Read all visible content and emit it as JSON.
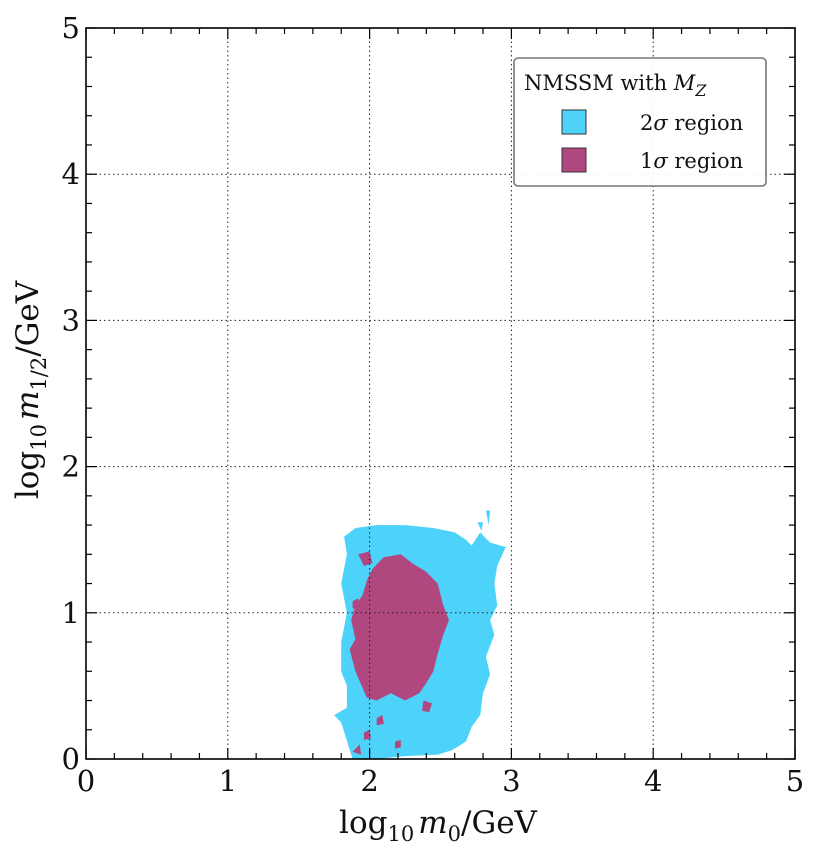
{
  "chart_data": {
    "type": "contour",
    "title": "",
    "xlabel": {
      "base": "log",
      "sub": "10",
      "var": "m",
      "var_sub": "0",
      "unit": "/GeV"
    },
    "ylabel": {
      "base": "log",
      "sub": "10",
      "var": "m",
      "var_sub": "1/2",
      "unit": "/GeV"
    },
    "xlim": [
      0,
      5
    ],
    "ylim": [
      0,
      5
    ],
    "xticks": [
      "0",
      "1",
      "2",
      "3",
      "4",
      "5"
    ],
    "yticks": [
      "0",
      "1",
      "2",
      "3",
      "4",
      "5"
    ],
    "grid": true,
    "legend": {
      "position": "top-right",
      "title_prefix": "NMSSM with ",
      "title_var": "M",
      "title_var_sub": "Z",
      "entries": [
        {
          "sigma": "2",
          "symbol": "σ",
          "text": " region",
          "color": "#4dd2fa"
        },
        {
          "sigma": "1",
          "symbol": "σ",
          "text": " region",
          "color": "#b0477f"
        }
      ]
    },
    "series": [
      {
        "name": "2σ region",
        "color": "#4dd2fa",
        "polygon": [
          [
            1.88,
            0.0
          ],
          [
            1.8,
            0.25
          ],
          [
            1.75,
            0.3
          ],
          [
            1.84,
            0.35
          ],
          [
            1.84,
            0.5
          ],
          [
            1.8,
            0.6
          ],
          [
            1.8,
            0.8
          ],
          [
            1.84,
            1.0
          ],
          [
            1.8,
            1.2
          ],
          [
            1.84,
            1.4
          ],
          [
            1.82,
            1.52
          ],
          [
            1.9,
            1.58
          ],
          [
            2.05,
            1.6
          ],
          [
            2.25,
            1.6
          ],
          [
            2.45,
            1.58
          ],
          [
            2.6,
            1.55
          ],
          [
            2.68,
            1.5
          ],
          [
            2.72,
            1.46
          ],
          [
            2.78,
            1.55
          ],
          [
            2.85,
            1.48
          ],
          [
            2.96,
            1.45
          ],
          [
            2.9,
            1.32
          ],
          [
            2.88,
            1.2
          ],
          [
            2.9,
            1.05
          ],
          [
            2.85,
            0.95
          ],
          [
            2.88,
            0.85
          ],
          [
            2.82,
            0.7
          ],
          [
            2.85,
            0.58
          ],
          [
            2.8,
            0.45
          ],
          [
            2.78,
            0.3
          ],
          [
            2.72,
            0.22
          ],
          [
            2.68,
            0.12
          ],
          [
            2.58,
            0.06
          ],
          [
            2.48,
            0.03
          ],
          [
            2.25,
            0.02
          ],
          [
            2.05,
            0.0
          ]
        ],
        "islands": [
          [
            [
              2.82,
              1.7
            ],
            [
              2.85,
              1.7
            ],
            [
              2.84,
              1.6
            ]
          ],
          [
            [
              2.76,
              1.62
            ],
            [
              2.8,
              1.62
            ],
            [
              2.79,
              1.56
            ]
          ]
        ]
      },
      {
        "name": "1σ region",
        "color": "#b0477f",
        "polygon": [
          [
            1.98,
            0.42
          ],
          [
            1.9,
            0.6
          ],
          [
            1.86,
            0.75
          ],
          [
            1.9,
            0.82
          ],
          [
            1.87,
            0.95
          ],
          [
            1.9,
            1.05
          ],
          [
            1.95,
            1.12
          ],
          [
            1.98,
            1.22
          ],
          [
            2.02,
            1.3
          ],
          [
            2.1,
            1.38
          ],
          [
            2.22,
            1.4
          ],
          [
            2.3,
            1.34
          ],
          [
            2.4,
            1.28
          ],
          [
            2.48,
            1.2
          ],
          [
            2.52,
            1.05
          ],
          [
            2.56,
            0.95
          ],
          [
            2.52,
            0.85
          ],
          [
            2.48,
            0.72
          ],
          [
            2.45,
            0.6
          ],
          [
            2.4,
            0.52
          ],
          [
            2.35,
            0.45
          ],
          [
            2.25,
            0.4
          ],
          [
            2.15,
            0.45
          ],
          [
            2.05,
            0.4
          ]
        ],
        "islands": [
          [
            [
              1.92,
              1.4
            ],
            [
              2.0,
              1.42
            ],
            [
              2.02,
              1.34
            ],
            [
              1.96,
              1.32
            ]
          ],
          [
            [
              1.88,
              1.08
            ],
            [
              1.92,
              1.1
            ],
            [
              1.93,
              1.02
            ],
            [
              1.88,
              1.03
            ]
          ],
          [
            [
              2.38,
              0.4
            ],
            [
              2.44,
              0.38
            ],
            [
              2.42,
              0.32
            ],
            [
              2.37,
              0.33
            ]
          ],
          [
            [
              2.05,
              0.28
            ],
            [
              2.09,
              0.3
            ],
            [
              2.1,
              0.24
            ],
            [
              2.05,
              0.23
            ]
          ],
          [
            [
              1.88,
              0.05
            ],
            [
              1.93,
              0.1
            ],
            [
              1.94,
              0.03
            ]
          ],
          [
            [
              1.96,
              0.18
            ],
            [
              2.0,
              0.2
            ],
            [
              2.01,
              0.14
            ],
            [
              1.96,
              0.13
            ]
          ],
          [
            [
              2.18,
              0.12
            ],
            [
              2.22,
              0.13
            ],
            [
              2.22,
              0.08
            ],
            [
              2.18,
              0.07
            ]
          ]
        ]
      }
    ]
  }
}
